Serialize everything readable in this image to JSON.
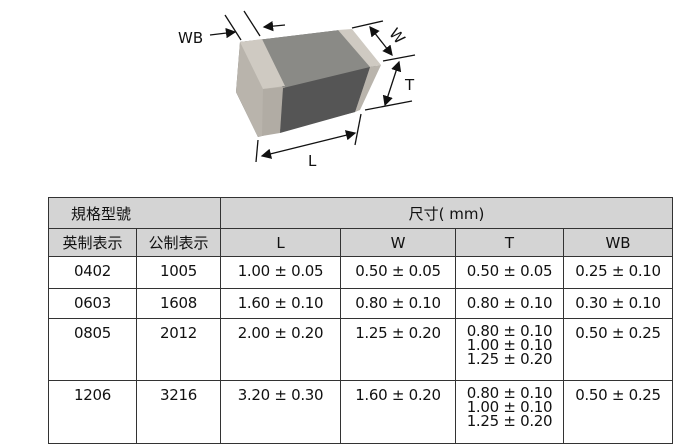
{
  "diagram": {
    "labels": {
      "wb": "WB",
      "w": "W",
      "t": "T",
      "l": "L"
    }
  },
  "table": {
    "group_headers": {
      "model": "規格型號",
      "dims": "尺寸( mm)"
    },
    "columns": [
      "英制表示",
      "公制表示",
      "L",
      "W",
      "T",
      "WB"
    ],
    "rows": [
      {
        "imperial": "0402",
        "metric": "1005",
        "L": "1.00 ± 0.05",
        "W": "0.50 ± 0.05",
        "T": [
          "0.50 ± 0.05"
        ],
        "WB": "0.25 ± 0.10"
      },
      {
        "imperial": "0603",
        "metric": "1608",
        "L": "1.60 ± 0.10",
        "W": "0.80 ± 0.10",
        "T": [
          "0.80 ± 0.10"
        ],
        "WB": "0.30 ± 0.10"
      },
      {
        "imperial": "0805",
        "metric": "2012",
        "L": "2.00 ± 0.20",
        "W": "1.25 ± 0.20",
        "T": [
          "0.80 ± 0.10",
          "1.00 ± 0.10",
          "1.25 ± 0.20"
        ],
        "WB": "0.50 ± 0.25"
      },
      {
        "imperial": "1206",
        "metric": "3216",
        "L": "3.20 ± 0.30",
        "W": "1.60 ± 0.20",
        "T": [
          "0.80 ± 0.10",
          "1.00 ± 0.10",
          "1.25 ± 0.20"
        ],
        "WB": "0.50 ± 0.25"
      }
    ]
  }
}
